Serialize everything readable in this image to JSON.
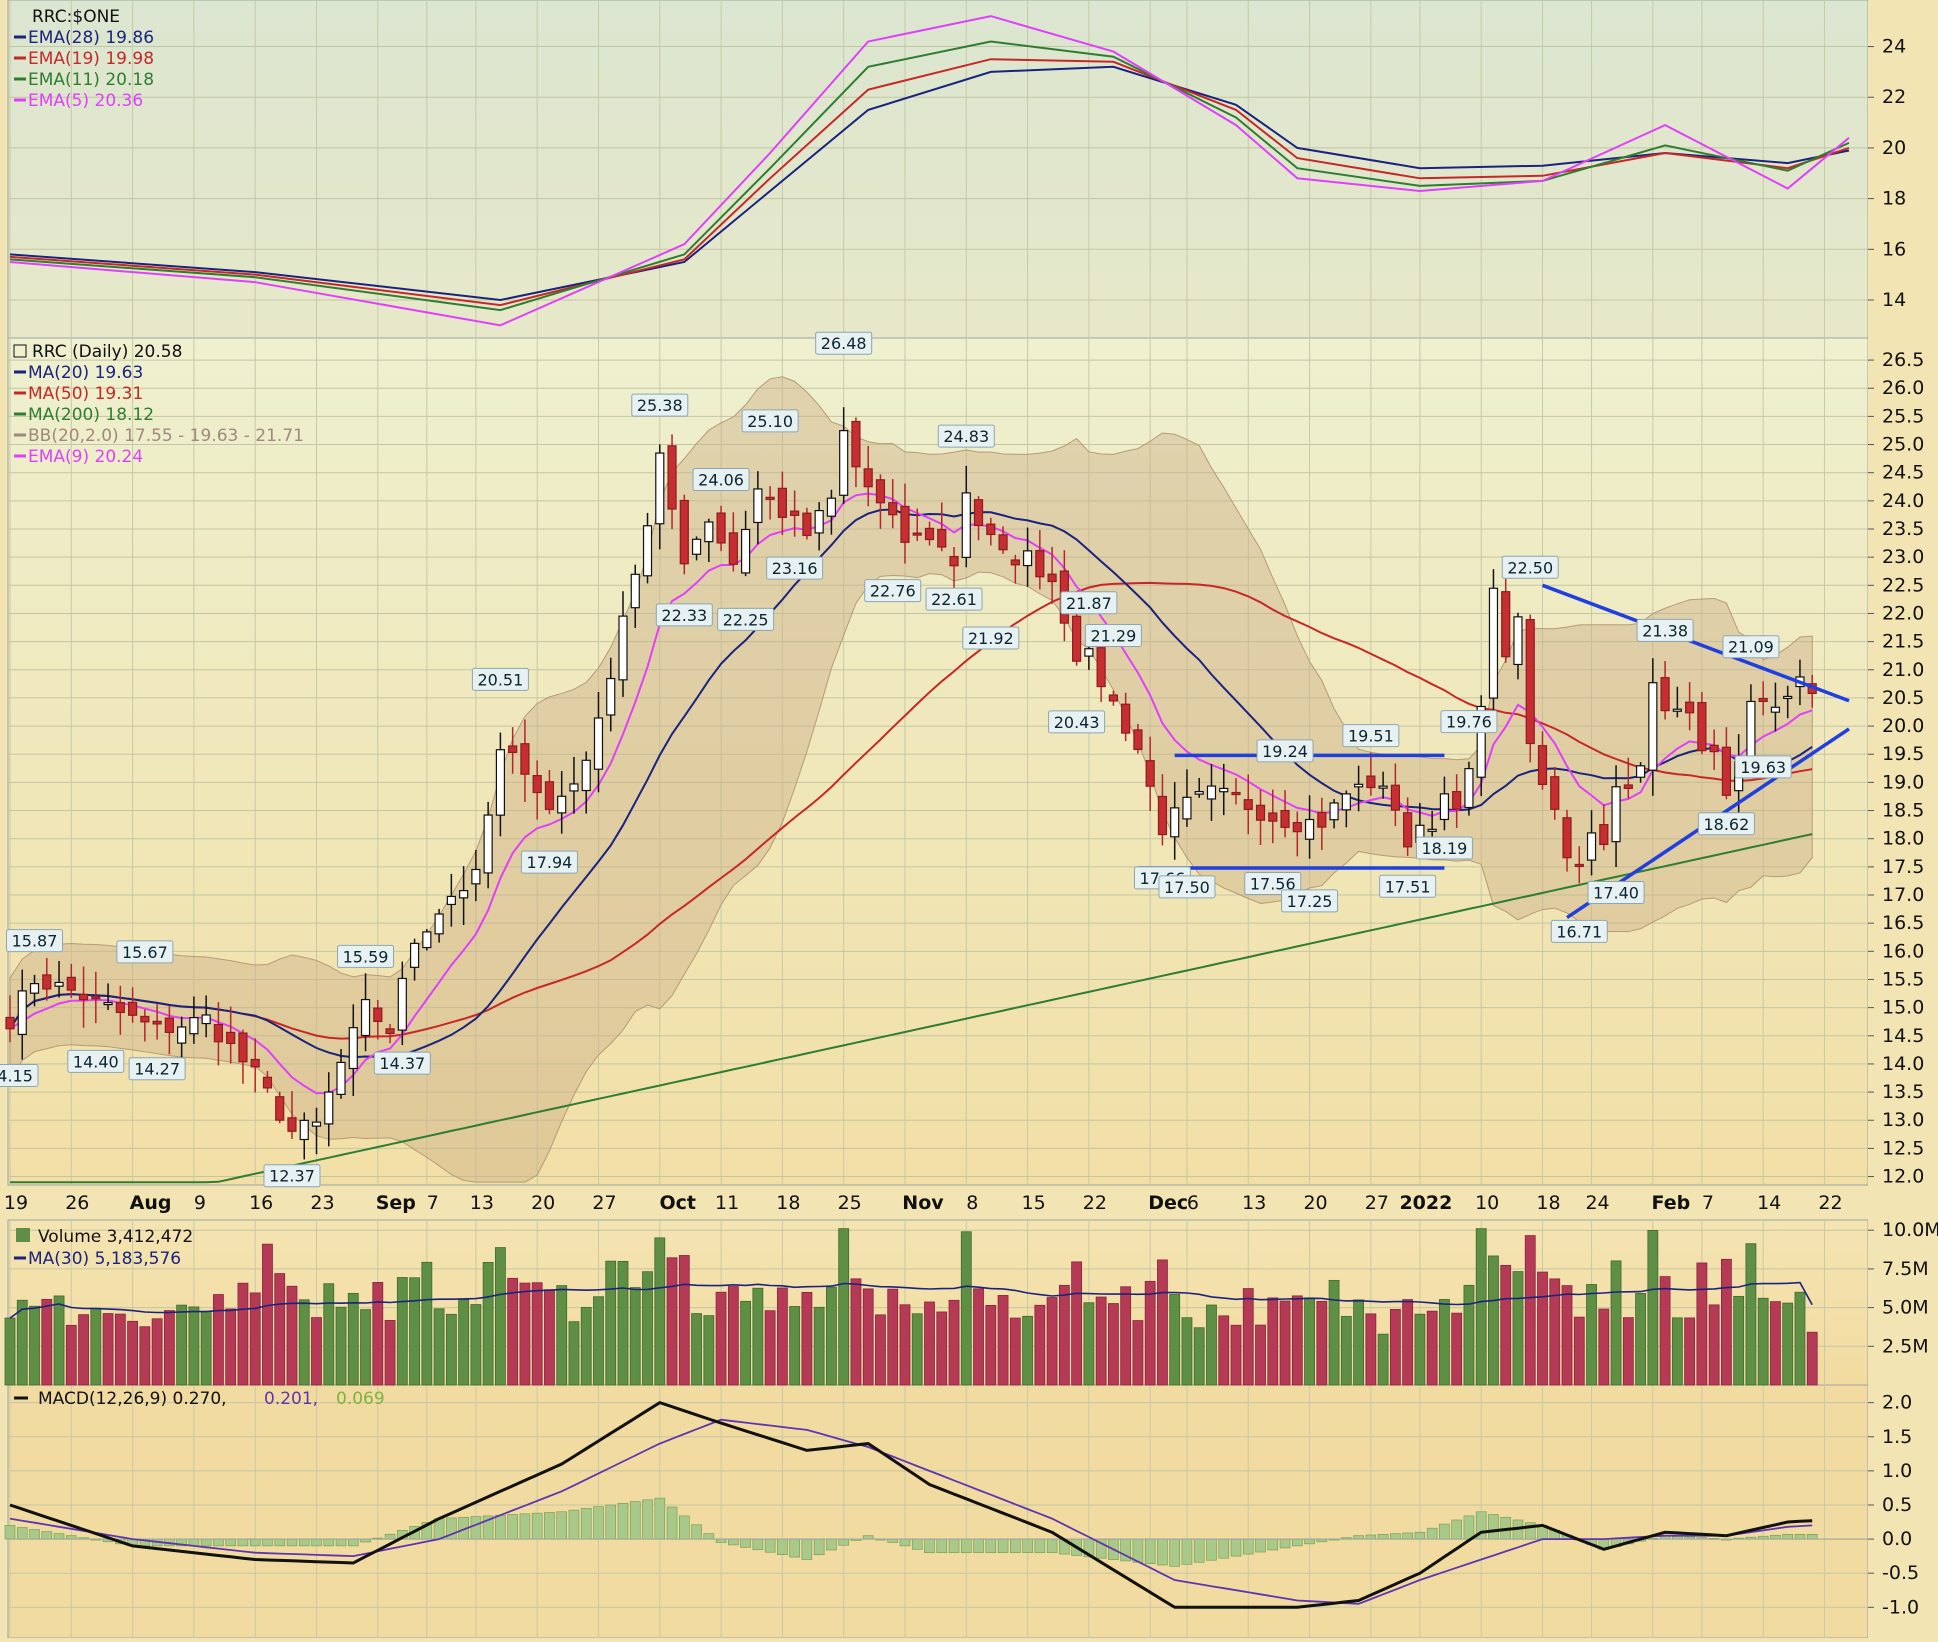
{
  "chart_data": [
    {
      "type": "line",
      "panel": "ratio",
      "title": "RRC:$ONE",
      "legend": [
        {
          "label": "EMA(28) 19.86",
          "color": "#1a237e"
        },
        {
          "label": "EMA(19) 19.98",
          "color": "#c62828"
        },
        {
          "label": "EMA(11) 20.18",
          "color": "#2e7d32"
        },
        {
          "label": "EMA(5) 20.36",
          "color": "#e040fb"
        }
      ],
      "y_ticks": [
        "24",
        "22",
        "20",
        "18",
        "16",
        "14"
      ],
      "ylim": [
        12.5,
        25.6
      ],
      "series": [
        {
          "name": "EMA(28)",
          "color": "#1a237e",
          "x": [
            0,
            20,
            40,
            55,
            62,
            70,
            80,
            90,
            100,
            105,
            115,
            125,
            135,
            145,
            150
          ],
          "values": [
            15.8,
            15.1,
            14.0,
            15.5,
            18.3,
            21.5,
            23.0,
            23.2,
            21.7,
            20.0,
            19.2,
            19.3,
            19.8,
            19.4,
            19.9
          ]
        },
        {
          "name": "EMA(19)",
          "color": "#c62828",
          "x": [
            0,
            20,
            40,
            55,
            62,
            70,
            80,
            90,
            100,
            105,
            115,
            125,
            135,
            145,
            150
          ],
          "values": [
            15.7,
            15.0,
            13.8,
            15.6,
            18.8,
            22.3,
            23.5,
            23.4,
            21.5,
            19.6,
            18.8,
            18.9,
            19.8,
            19.2,
            20.0
          ]
        },
        {
          "name": "EMA(11)",
          "color": "#2e7d32",
          "x": [
            0,
            20,
            40,
            55,
            62,
            70,
            80,
            90,
            100,
            105,
            115,
            125,
            135,
            145,
            150
          ],
          "values": [
            15.6,
            14.9,
            13.6,
            15.8,
            19.2,
            23.2,
            24.2,
            23.6,
            21.2,
            19.2,
            18.5,
            18.7,
            20.1,
            19.1,
            20.2
          ]
        },
        {
          "name": "EMA(5)",
          "color": "#e040fb",
          "x": [
            0,
            20,
            40,
            55,
            62,
            70,
            80,
            90,
            100,
            105,
            115,
            125,
            135,
            145,
            150
          ],
          "values": [
            15.5,
            14.7,
            13.0,
            16.2,
            19.8,
            24.2,
            25.2,
            23.8,
            20.9,
            18.8,
            18.3,
            18.7,
            20.9,
            18.4,
            20.4
          ]
        }
      ]
    },
    {
      "type": "candlestick",
      "panel": "price",
      "title": "RRC (Daily) 20.58",
      "legend": [
        {
          "label": "RRC (Daily) 20.58",
          "color": "#111111"
        },
        {
          "label": "MA(20) 19.63",
          "color": "#1a237e"
        },
        {
          "label": "MA(50) 19.31",
          "color": "#c62828"
        },
        {
          "label": "MA(200) 18.12",
          "color": "#2e7d32"
        },
        {
          "label": "BB(20,2.0) 17.55 - 19.63 - 21.71",
          "color": "#a1887f"
        },
        {
          "label": "EMA(9) 20.24",
          "color": "#e040fb"
        }
      ],
      "y_ticks": [
        "26.5",
        "26.0",
        "25.5",
        "25.0",
        "24.5",
        "24.0",
        "23.5",
        "23.0",
        "22.5",
        "22.0",
        "21.5",
        "21.0",
        "20.5",
        "20.0",
        "19.5",
        "19.0",
        "18.5",
        "18.0",
        "17.5",
        "17.0",
        "16.5",
        "16.0",
        "15.5",
        "15.0",
        "14.5",
        "14.0",
        "13.5",
        "13.0",
        "12.5",
        "12.0"
      ],
      "ylim": [
        11.85,
        26.75
      ],
      "x_labels": [
        {
          "label": "19",
          "x": 0
        },
        {
          "label": "26",
          "x": 5
        },
        {
          "label": "Aug",
          "x": 10
        },
        {
          "label": "9",
          "x": 15
        },
        {
          "label": "16",
          "x": 20
        },
        {
          "label": "23",
          "x": 25
        },
        {
          "label": "Sep",
          "x": 30
        },
        {
          "label": "7",
          "x": 34
        },
        {
          "label": "13",
          "x": 38
        },
        {
          "label": "20",
          "x": 43
        },
        {
          "label": "27",
          "x": 48
        },
        {
          "label": "Oct",
          "x": 53
        },
        {
          "label": "11",
          "x": 58
        },
        {
          "label": "18",
          "x": 63
        },
        {
          "label": "25",
          "x": 68
        },
        {
          "label": "Nov",
          "x": 73
        },
        {
          "label": "8",
          "x": 78
        },
        {
          "label": "15",
          "x": 83
        },
        {
          "label": "22",
          "x": 88
        },
        {
          "label": "Dec",
          "x": 93
        },
        {
          "label": "6",
          "x": 96
        },
        {
          "label": "13",
          "x": 101
        },
        {
          "label": "20",
          "x": 106
        },
        {
          "label": "27",
          "x": 111
        },
        {
          "label": "2022",
          "x": 115
        },
        {
          "label": "10",
          "x": 120
        },
        {
          "label": "18",
          "x": 125
        },
        {
          "label": "24",
          "x": 129
        },
        {
          "label": "Feb",
          "x": 134
        },
        {
          "label": "7",
          "x": 138
        },
        {
          "label": "14",
          "x": 143
        },
        {
          "label": "22",
          "x": 148
        }
      ],
      "annotations": [
        {
          "x": 0,
          "value": 14.15,
          "text": "14.15",
          "pos": "below"
        },
        {
          "x": 2,
          "value": 15.87,
          "text": "15.87",
          "pos": "above"
        },
        {
          "x": 7,
          "value": 14.4,
          "text": "14.40",
          "pos": "below"
        },
        {
          "x": 11,
          "value": 15.67,
          "text": "15.67",
          "pos": "above"
        },
        {
          "x": 12,
          "value": 14.27,
          "text": "14.27",
          "pos": "below"
        },
        {
          "x": 23,
          "value": 12.37,
          "text": "12.37",
          "pos": "below"
        },
        {
          "x": 29,
          "value": 15.59,
          "text": "15.59",
          "pos": "above"
        },
        {
          "x": 32,
          "value": 14.37,
          "text": "14.37",
          "pos": "below"
        },
        {
          "x": 40,
          "value": 20.51,
          "text": "20.51",
          "pos": "above"
        },
        {
          "x": 44,
          "value": 17.94,
          "text": "17.94",
          "pos": "below"
        },
        {
          "x": 53,
          "value": 25.38,
          "text": "25.38",
          "pos": "above"
        },
        {
          "x": 55,
          "value": 22.33,
          "text": "22.33",
          "pos": "below"
        },
        {
          "x": 58,
          "value": 24.06,
          "text": "24.06",
          "pos": "above"
        },
        {
          "x": 60,
          "value": 22.25,
          "text": "22.25",
          "pos": "below"
        },
        {
          "x": 62,
          "value": 25.1,
          "text": "25.10",
          "pos": "above"
        },
        {
          "x": 64,
          "value": 23.16,
          "text": "23.16",
          "pos": "below"
        },
        {
          "x": 68,
          "value": 26.48,
          "text": "26.48",
          "pos": "above"
        },
        {
          "x": 72,
          "value": 22.76,
          "text": "22.76",
          "pos": "below"
        },
        {
          "x": 77,
          "value": 22.61,
          "text": "22.61",
          "pos": "below"
        },
        {
          "x": 78,
          "value": 24.83,
          "text": "24.83",
          "pos": "above"
        },
        {
          "x": 80,
          "value": 21.92,
          "text": "21.92",
          "pos": "below"
        },
        {
          "x": 88,
          "value": 21.87,
          "text": "21.87",
          "pos": "above"
        },
        {
          "x": 87,
          "value": 20.43,
          "text": "20.43",
          "pos": "below"
        },
        {
          "x": 90,
          "value": 21.29,
          "text": "21.29",
          "pos": "above"
        },
        {
          "x": 94,
          "value": 17.66,
          "text": "17.66",
          "pos": "below"
        },
        {
          "x": 96,
          "value": 17.5,
          "text": "17.50",
          "pos": "below"
        },
        {
          "x": 103,
          "value": 17.56,
          "text": "17.56",
          "pos": "below"
        },
        {
          "x": 104,
          "value": 19.24,
          "text": "19.24",
          "pos": "above"
        },
        {
          "x": 106,
          "value": 17.25,
          "text": "17.25",
          "pos": "below"
        },
        {
          "x": 111,
          "value": 19.51,
          "text": "19.51",
          "pos": "above"
        },
        {
          "x": 114,
          "value": 17.51,
          "text": "17.51",
          "pos": "below"
        },
        {
          "x": 117,
          "value": 18.19,
          "text": "18.19",
          "pos": "below"
        },
        {
          "x": 119,
          "value": 19.76,
          "text": "19.76",
          "pos": "above"
        },
        {
          "x": 124,
          "value": 22.5,
          "text": "22.50",
          "pos": "above"
        },
        {
          "x": 128,
          "value": 16.71,
          "text": "16.71",
          "pos": "below"
        },
        {
          "x": 131,
          "value": 17.4,
          "text": "17.40",
          "pos": "below"
        },
        {
          "x": 135,
          "value": 21.38,
          "text": "21.38",
          "pos": "above"
        },
        {
          "x": 140,
          "value": 18.62,
          "text": "18.62",
          "pos": "below"
        },
        {
          "x": 142,
          "value": 21.09,
          "text": "21.09",
          "pos": "above"
        },
        {
          "x": 143,
          "value": 19.63,
          "text": "19.63",
          "pos": "below"
        }
      ],
      "trendlines": [
        {
          "x1": 95,
          "y1": 19.48,
          "x2": 117,
          "y2": 19.48,
          "color": "#1f3fe0"
        },
        {
          "x1": 92,
          "y1": 17.48,
          "x2": 117,
          "y2": 17.48,
          "color": "#1f3fe0"
        },
        {
          "x1": 125,
          "y1": 22.5,
          "x2": 150,
          "y2": 20.45,
          "color": "#1f3fe0"
        },
        {
          "x1": 127,
          "y1": 16.6,
          "x2": 150,
          "y2": 19.95,
          "color": "#1f3fe0"
        }
      ],
      "anchor_closes": [
        [
          0,
          14.8
        ],
        [
          2,
          15.5
        ],
        [
          5,
          15.3
        ],
        [
          9,
          14.9
        ],
        [
          12,
          14.6
        ],
        [
          16,
          14.8
        ],
        [
          20,
          13.8
        ],
        [
          23,
          12.8
        ],
        [
          25,
          12.9
        ],
        [
          27,
          14.0
        ],
        [
          29,
          15.0
        ],
        [
          31,
          14.6
        ],
        [
          33,
          16.2
        ],
        [
          36,
          17.0
        ],
        [
          38,
          17.3
        ],
        [
          40,
          19.5
        ],
        [
          42,
          19.3
        ],
        [
          44,
          18.5
        ],
        [
          46,
          19.0
        ],
        [
          48,
          20.0
        ],
        [
          50,
          22.0
        ],
        [
          52,
          23.5
        ],
        [
          53,
          24.7
        ],
        [
          55,
          23.0
        ],
        [
          57,
          23.7
        ],
        [
          59,
          22.9
        ],
        [
          61,
          24.2
        ],
        [
          63,
          23.8
        ],
        [
          65,
          23.4
        ],
        [
          67,
          24.0
        ],
        [
          68,
          25.2
        ],
        [
          69,
          24.6
        ],
        [
          71,
          23.9
        ],
        [
          73,
          23.3
        ],
        [
          75,
          23.4
        ],
        [
          77,
          22.9
        ],
        [
          78,
          24.2
        ],
        [
          79,
          23.6
        ],
        [
          81,
          23.0
        ],
        [
          83,
          23.0
        ],
        [
          85,
          22.6
        ],
        [
          87,
          21.3
        ],
        [
          88,
          21.2
        ],
        [
          90,
          20.4
        ],
        [
          92,
          19.6
        ],
        [
          94,
          18.2
        ],
        [
          96,
          18.6
        ],
        [
          98,
          18.8
        ],
        [
          100,
          18.7
        ],
        [
          103,
          18.4
        ],
        [
          105,
          18.3
        ],
        [
          107,
          18.3
        ],
        [
          109,
          18.8
        ],
        [
          111,
          19.0
        ],
        [
          113,
          18.6
        ],
        [
          114,
          17.9
        ],
        [
          116,
          18.3
        ],
        [
          117,
          18.8
        ],
        [
          118,
          18.7
        ],
        [
          119,
          19.1
        ],
        [
          120,
          20.3
        ],
        [
          121,
          22.3
        ],
        [
          122,
          21.4
        ],
        [
          123,
          21.8
        ],
        [
          124,
          19.8
        ],
        [
          125,
          18.8
        ],
        [
          126,
          18.5
        ],
        [
          127,
          17.6
        ],
        [
          128,
          17.6
        ],
        [
          129,
          18.2
        ],
        [
          130,
          18.0
        ],
        [
          131,
          18.9
        ],
        [
          133,
          19.2
        ],
        [
          134,
          20.7
        ],
        [
          135,
          20.2
        ],
        [
          137,
          20.4
        ],
        [
          138,
          19.7
        ],
        [
          139,
          19.4
        ],
        [
          140,
          18.9
        ],
        [
          141,
          19.3
        ],
        [
          142,
          20.3
        ],
        [
          143,
          20.6
        ],
        [
          144,
          20.2
        ],
        [
          145,
          20.4
        ],
        [
          146,
          20.7
        ],
        [
          147,
          20.58
        ]
      ]
    },
    {
      "type": "bar",
      "panel": "volume",
      "title": "Volume 3,412,472",
      "legend": [
        {
          "label": "Volume 3,412,472",
          "color": "#111111"
        },
        {
          "label": "MA(30) 5,183,576",
          "color": "#1a237e"
        }
      ],
      "y_ticks": [
        "10.0M",
        "7.5M",
        "5.0M",
        "2.5M"
      ],
      "ylim": [
        0,
        10.4
      ]
    },
    {
      "type": "line",
      "panel": "macd",
      "title": "MACD(12,26,9) 0.270, 0.201, 0.069",
      "legend": [
        {
          "label": "MACD(12,26,9) 0.270,",
          "color": "#111111"
        },
        {
          "label": "0.201,",
          "color": "#5e35b1"
        },
        {
          "label": "0.069",
          "color": "#7cb342"
        }
      ],
      "y_ticks": [
        "2.0",
        "1.5",
        "1.0",
        "0.5",
        "0.0",
        "-0.5",
        "-1.0"
      ],
      "ylim": [
        -1.45,
        2.2
      ],
      "series": [
        {
          "name": "MACD",
          "color": "#111111",
          "x": [
            0,
            10,
            20,
            28,
            35,
            45,
            53,
            58,
            65,
            70,
            75,
            85,
            95,
            105,
            110,
            115,
            120,
            125,
            130,
            135,
            140,
            145,
            147
          ],
          "values": [
            0.5,
            -0.1,
            -0.3,
            -0.35,
            0.3,
            1.1,
            2.0,
            1.7,
            1.3,
            1.4,
            0.8,
            0.1,
            -1.0,
            -1.0,
            -0.9,
            -0.5,
            0.1,
            0.2,
            -0.15,
            0.1,
            0.05,
            0.25,
            0.27
          ]
        },
        {
          "name": "Signal",
          "color": "#5e35b1",
          "x": [
            0,
            10,
            20,
            28,
            35,
            45,
            53,
            58,
            65,
            70,
            75,
            85,
            95,
            105,
            110,
            115,
            120,
            125,
            130,
            135,
            140,
            145,
            147
          ],
          "values": [
            0.3,
            0.0,
            -0.2,
            -0.25,
            0.0,
            0.7,
            1.4,
            1.75,
            1.6,
            1.35,
            1.0,
            0.3,
            -0.6,
            -0.9,
            -0.95,
            -0.6,
            -0.3,
            0.0,
            0.0,
            0.05,
            0.05,
            0.18,
            0.2
          ]
        }
      ]
    }
  ]
}
